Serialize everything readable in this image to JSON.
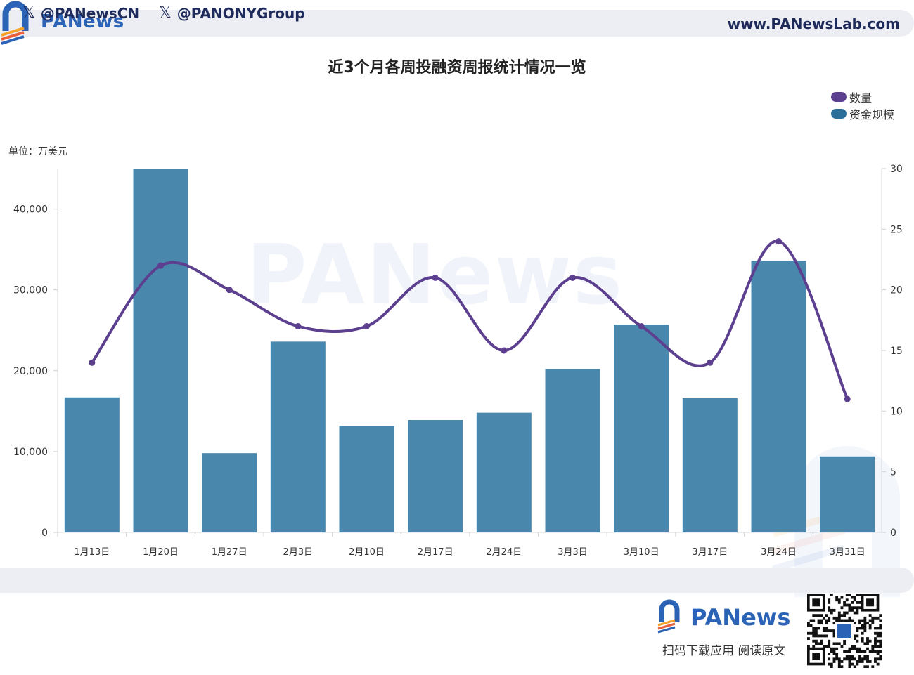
{
  "header": {
    "brand": "PANews",
    "url": "www.PANewsLab.com"
  },
  "watermark": "PANews",
  "chart_data": {
    "type": "bar",
    "title": "近3个月各周投融资周报统计情况一览",
    "unit_label": "单位：万美元",
    "categories": [
      "1月13日",
      "1月20日",
      "1月27日",
      "2月3日",
      "2月10日",
      "2月17日",
      "2月24日",
      "3月3日",
      "3月10日",
      "3月17日",
      "3月24日",
      "3月31日"
    ],
    "series": [
      {
        "name": "资金规模",
        "type": "bar",
        "axis": "left",
        "color": "#4a87ac",
        "values": [
          16700,
          45000,
          9800,
          23600,
          13200,
          13900,
          14800,
          20200,
          25700,
          16600,
          33600,
          9400
        ]
      },
      {
        "name": "数量",
        "type": "line",
        "axis": "right",
        "color": "#5c3f8f",
        "values": [
          14,
          22,
          20,
          17,
          17,
          21,
          15,
          21,
          17,
          14,
          24,
          11
        ]
      }
    ],
    "left_axis": {
      "ylim": [
        0,
        45000
      ],
      "ticks": [
        0,
        10000,
        20000,
        30000,
        40000
      ],
      "tick_labels": [
        "0",
        "10,000",
        "20,000",
        "30,000",
        "40,000"
      ]
    },
    "right_axis": {
      "ylim": [
        0,
        30
      ],
      "ticks": [
        0,
        5,
        10,
        15,
        20,
        25,
        30
      ],
      "tick_labels": [
        "0",
        "5",
        "10",
        "15",
        "20",
        "25",
        "30"
      ]
    },
    "legend": {
      "position": "top-right",
      "items": [
        "数量",
        "资金规模"
      ]
    },
    "grid": false
  },
  "legend_colors": {
    "数量": "#5c3f8f",
    "资金规模": "#2b6f9a"
  },
  "footer": {
    "social": [
      "@PANewsCN",
      "@PANONYGroup"
    ],
    "social_icon": "x-logo-icon",
    "brand": "PANews",
    "caption": "扫码下载应用  阅读原文",
    "qr_icon": "qr-code-icon"
  }
}
